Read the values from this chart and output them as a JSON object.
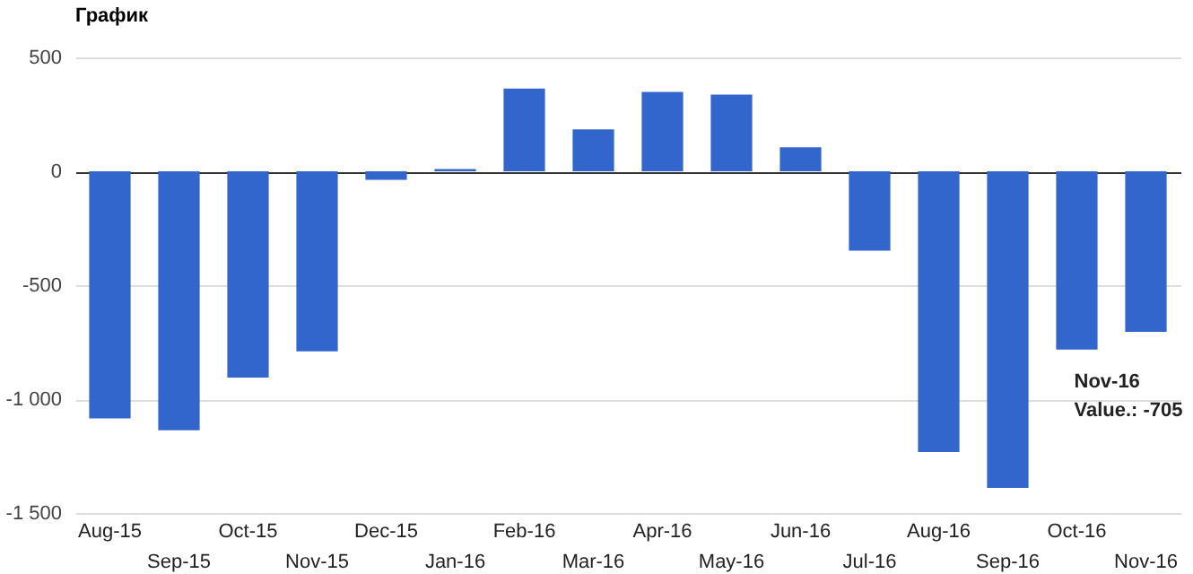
{
  "chart_data": {
    "type": "bar",
    "title": "График",
    "categories": [
      "Aug-15",
      "Sep-15",
      "Oct-15",
      "Nov-15",
      "Dec-15",
      "Jan-16",
      "Feb-16",
      "Mar-16",
      "Apr-16",
      "May-16",
      "Jun-16",
      "Jul-16",
      "Aug-16",
      "Sep-16",
      "Oct-16",
      "Nov-16"
    ],
    "values": [
      -1085,
      -1137,
      -906,
      -790,
      -37,
      10,
      363,
      184,
      348,
      337,
      105,
      -348,
      -1232,
      -1390,
      -782,
      -705
    ],
    "color": "#3366cc",
    "ylim": [
      -1500,
      500
    ],
    "yticks": [
      500,
      0,
      -500,
      {
        "value": -1000,
        "label": "-1 000"
      },
      {
        "value": -1500,
        "label": "-1 500"
      }
    ],
    "grid": "y",
    "annotations": [
      {
        "text": "Nov-16\nValue.: -705",
        "x": "Nov-16",
        "y": -705
      }
    ]
  }
}
